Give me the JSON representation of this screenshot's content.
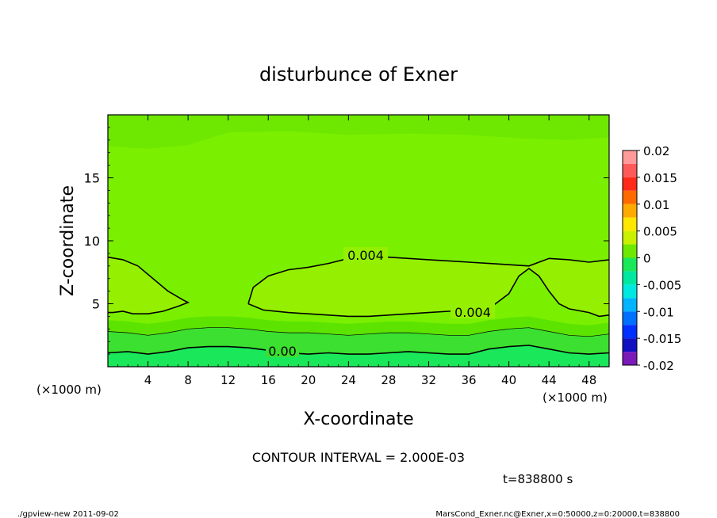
{
  "chart_data": {
    "type": "heatmap",
    "title": "disturbunce of Exner",
    "xlabel": "X-coordinate",
    "ylabel": "Z-coordinate",
    "x_unit": "(×1000 m)",
    "y_unit": "(×1000 m)",
    "xlim": [
      0,
      50
    ],
    "ylim": [
      0,
      20
    ],
    "x_ticks": [
      4,
      8,
      12,
      16,
      20,
      24,
      28,
      32,
      36,
      40,
      44,
      48
    ],
    "y_ticks": [
      5,
      10,
      15
    ],
    "grid": false,
    "colorbar": {
      "ticks": [
        "0.02",
        "0.015",
        "0.01",
        "0.005",
        "0",
        "-0.005",
        "-0.01",
        "-0.015",
        "-0.02"
      ],
      "range": [
        -0.02,
        0.02
      ],
      "levels": [
        {
          "from": 0.0175,
          "to": 0.02,
          "color": "#ff9a9a"
        },
        {
          "from": 0.015,
          "to": 0.0175,
          "color": "#ff5a5a"
        },
        {
          "from": 0.0125,
          "to": 0.015,
          "color": "#ff2a1a"
        },
        {
          "from": 0.01,
          "to": 0.0125,
          "color": "#ff6a00"
        },
        {
          "from": 0.0075,
          "to": 0.01,
          "color": "#ffaa00"
        },
        {
          "from": 0.005,
          "to": 0.0075,
          "color": "#ffe800"
        },
        {
          "from": 0.0025,
          "to": 0.005,
          "color": "#c8f000"
        },
        {
          "from": 0.0,
          "to": 0.0025,
          "color": "#6ee800"
        },
        {
          "from": -0.0025,
          "to": 0.0,
          "color": "#1ae85a"
        },
        {
          "from": -0.005,
          "to": -0.0025,
          "color": "#00e8a0"
        },
        {
          "from": -0.0075,
          "to": -0.005,
          "color": "#00e8e0"
        },
        {
          "from": -0.01,
          "to": -0.0075,
          "color": "#00b4ff"
        },
        {
          "from": -0.0125,
          "to": -0.01,
          "color": "#0070ff"
        },
        {
          "from": -0.015,
          "to": -0.0125,
          "color": "#0030ff"
        },
        {
          "from": -0.0175,
          "to": -0.015,
          "color": "#1010c0"
        },
        {
          "from": -0.02,
          "to": -0.0175,
          "color": "#7a1ab8"
        }
      ]
    },
    "contour_interval_text": "CONTOUR INTERVAL = 2.000E-03",
    "contour_labels": [
      "0.004",
      "0.004",
      "0.00"
    ],
    "contours": [
      {
        "level": 0.004,
        "points": [
          [
            0,
            8.7
          ],
          [
            1.5,
            8.5
          ],
          [
            3,
            8
          ],
          [
            4.5,
            7
          ],
          [
            6,
            6
          ],
          [
            7.5,
            5.3
          ],
          [
            8,
            5.1
          ],
          [
            7,
            4.8
          ],
          [
            5.5,
            4.4
          ],
          [
            4,
            4.2
          ],
          [
            2.5,
            4.2
          ],
          [
            1.5,
            4.4
          ],
          [
            0.5,
            4.3
          ],
          [
            0,
            4.3
          ]
        ]
      },
      {
        "level": 0.004,
        "points": [
          [
            14,
            5
          ],
          [
            14.5,
            6.3
          ],
          [
            16,
            7.2
          ],
          [
            18,
            7.7
          ],
          [
            20,
            7.9
          ],
          [
            22,
            8.2
          ],
          [
            24,
            8.6
          ],
          [
            26,
            8.7
          ],
          [
            28,
            8.7
          ],
          [
            30,
            8.6
          ],
          [
            32,
            8.5
          ],
          [
            34,
            8.4
          ],
          [
            36,
            8.3
          ],
          [
            38,
            8.2
          ],
          [
            40,
            8.1
          ],
          [
            42,
            8
          ],
          [
            44,
            8.6
          ],
          [
            46,
            8.5
          ],
          [
            48,
            8.3
          ],
          [
            50,
            8.5
          ]
        ]
      },
      {
        "level": 0.004,
        "points": [
          [
            14,
            5
          ],
          [
            15.5,
            4.5
          ],
          [
            18,
            4.3
          ],
          [
            20,
            4.2
          ],
          [
            22,
            4.1
          ],
          [
            24,
            4.0
          ],
          [
            26,
            4.0
          ],
          [
            28,
            4.1
          ],
          [
            30,
            4.2
          ],
          [
            32,
            4.3
          ],
          [
            34,
            4.4
          ],
          [
            36,
            4.5
          ],
          [
            38,
            4.6
          ],
          [
            40,
            5.8
          ],
          [
            41,
            7.2
          ],
          [
            42,
            7.8
          ],
          [
            43,
            7.2
          ],
          [
            44,
            6
          ],
          [
            45,
            5
          ],
          [
            46,
            4.6
          ],
          [
            48,
            4.3
          ],
          [
            49,
            4.0
          ],
          [
            50,
            4.1
          ]
        ]
      },
      {
        "level": 0.002,
        "points": [
          [
            0,
            2.8
          ],
          [
            2,
            2.7
          ],
          [
            4,
            2.5
          ],
          [
            6,
            2.7
          ],
          [
            8,
            3.0
          ],
          [
            10,
            3.1
          ],
          [
            12,
            3.1
          ],
          [
            14,
            3.0
          ],
          [
            16,
            2.8
          ],
          [
            18,
            2.7
          ],
          [
            20,
            2.7
          ],
          [
            22,
            2.6
          ],
          [
            24,
            2.5
          ],
          [
            26,
            2.6
          ],
          [
            28,
            2.7
          ],
          [
            30,
            2.7
          ],
          [
            32,
            2.6
          ],
          [
            34,
            2.5
          ],
          [
            36,
            2.5
          ],
          [
            38,
            2.8
          ],
          [
            40,
            3.0
          ],
          [
            42,
            3.1
          ],
          [
            44,
            2.8
          ],
          [
            46,
            2.5
          ],
          [
            48,
            2.4
          ],
          [
            50,
            2.6
          ]
        ]
      },
      {
        "level": 0.0,
        "points": [
          [
            0,
            1.1
          ],
          [
            2,
            1.2
          ],
          [
            4,
            1.0
          ],
          [
            6,
            1.2
          ],
          [
            8,
            1.5
          ],
          [
            10,
            1.6
          ],
          [
            12,
            1.6
          ],
          [
            14,
            1.5
          ],
          [
            16,
            1.3
          ],
          [
            18,
            1.1
          ],
          [
            20,
            1.0
          ],
          [
            22,
            1.1
          ],
          [
            24,
            1.0
          ],
          [
            26,
            1.0
          ],
          [
            28,
            1.1
          ],
          [
            30,
            1.2
          ],
          [
            32,
            1.1
          ],
          [
            34,
            1.0
          ],
          [
            36,
            1.0
          ],
          [
            38,
            1.4
          ],
          [
            40,
            1.6
          ],
          [
            42,
            1.7
          ],
          [
            44,
            1.4
          ],
          [
            46,
            1.1
          ],
          [
            48,
            1.0
          ],
          [
            50,
            1.1
          ]
        ]
      }
    ]
  },
  "time_label": "t=838800  s",
  "footer_left": "./gpview-new   2011-09-02",
  "footer_right": "MarsCond_Exner.nc@Exner,x=0:50000,z=0:20000,t=838800",
  "colors": {
    "field_main": "#7af000",
    "field_light": "#94f000",
    "field_upper": "#6ee800",
    "field_low1": "#5ce400",
    "field_low2": "#3ce030",
    "field_low3": "#1ae85a",
    "contour": "#000000"
  }
}
